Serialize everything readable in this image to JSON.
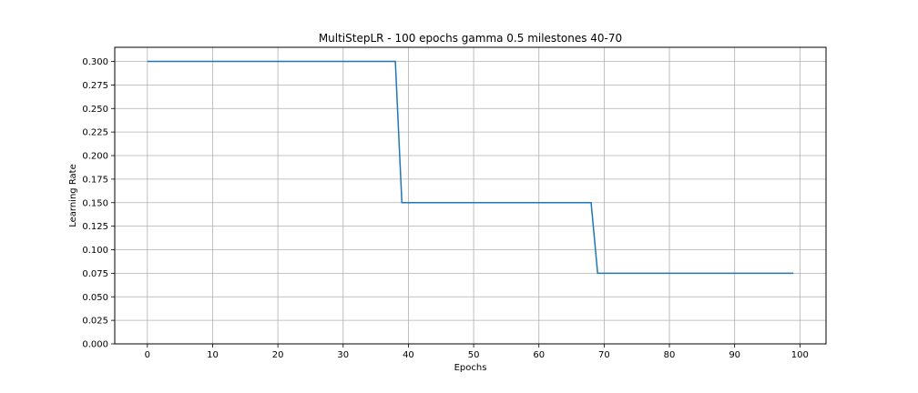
{
  "chart_data": {
    "type": "line",
    "title": "MultiStepLR - 100 epochs gamma 0.5 milestones 40-70",
    "xlabel": "Epochs",
    "ylabel": "Learning Rate",
    "xlim": [
      -5,
      104
    ],
    "ylim": [
      0.0,
      0.315
    ],
    "xticks": [
      0,
      10,
      20,
      30,
      40,
      50,
      60,
      70,
      80,
      90,
      100
    ],
    "xtick_labels": [
      "0",
      "10",
      "20",
      "30",
      "40",
      "50",
      "60",
      "70",
      "80",
      "90",
      "100"
    ],
    "yticks": [
      0.0,
      0.025,
      0.05,
      0.075,
      0.1,
      0.125,
      0.15,
      0.175,
      0.2,
      0.225,
      0.25,
      0.275,
      0.3
    ],
    "ytick_labels": [
      "0.000",
      "0.025",
      "0.050",
      "0.075",
      "0.100",
      "0.125",
      "0.150",
      "0.175",
      "0.200",
      "0.225",
      "0.250",
      "0.275",
      "0.300"
    ],
    "grid": true,
    "series": [
      {
        "color": "#1f77b4",
        "x": [
          0,
          38,
          39,
          68,
          69,
          99
        ],
        "y": [
          0.3,
          0.3,
          0.15,
          0.15,
          0.075,
          0.075
        ]
      }
    ]
  }
}
